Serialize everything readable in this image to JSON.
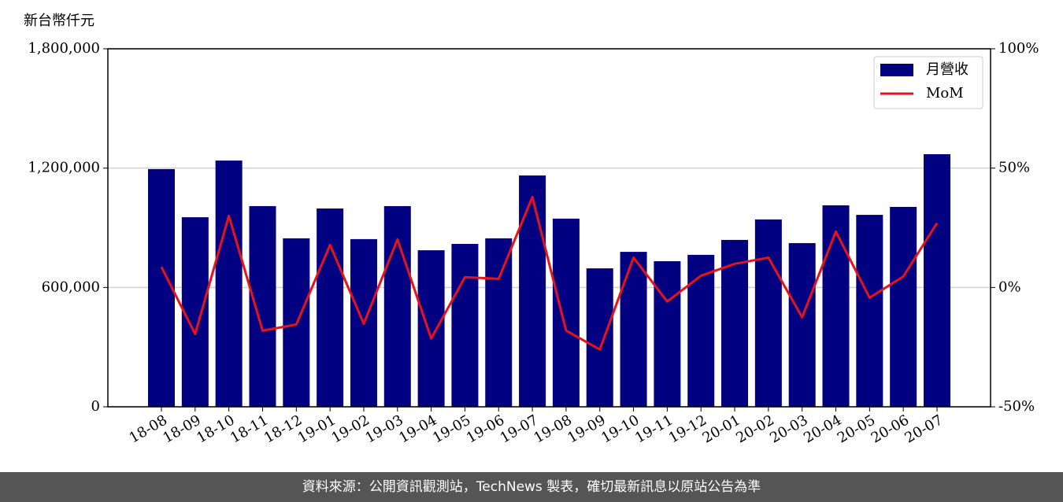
{
  "chart_data": {
    "type": "bar",
    "y_label": "新台幣仟元",
    "categories": [
      "18-08",
      "18-09",
      "18-10",
      "18-11",
      "18-12",
      "19-01",
      "19-02",
      "19-03",
      "19-04",
      "19-05",
      "19-06",
      "19-07",
      "19-08",
      "19-09",
      "19-10",
      "19-11",
      "19-12",
      "20-01",
      "20-02",
      "20-03",
      "20-04",
      "20-05",
      "20-06",
      "20-07"
    ],
    "series": [
      {
        "name": "月營收",
        "type": "bar",
        "color": "#000080",
        "values": [
          1195000,
          953000,
          1238000,
          1009000,
          847000,
          997000,
          843000,
          1009000,
          787000,
          819000,
          847000,
          1163000,
          946000,
          696000,
          779000,
          732000,
          764000,
          839000,
          942000,
          823000,
          1013000,
          965000,
          1005000,
          1270000
        ]
      },
      {
        "name": "MoM",
        "type": "line",
        "axis": "y2",
        "color": "#e8121b",
        "values": [
          8.6,
          -19.5,
          30.0,
          -18.1,
          -15.5,
          17.8,
          -15.2,
          20.1,
          -21.4,
          4.3,
          3.6,
          37.9,
          -18.1,
          -26.0,
          12.5,
          -5.9,
          4.9,
          9.9,
          12.5,
          -12.5,
          23.4,
          -4.3,
          4.6,
          27.0
        ]
      }
    ],
    "ylim": [
      0,
      1800000
    ],
    "yticks": [
      {
        "value": 0,
        "label": "0"
      },
      {
        "value": 600000,
        "label": "600,000"
      },
      {
        "value": 1200000,
        "label": "1,200,000"
      },
      {
        "value": 1800000,
        "label": "1,800,000"
      }
    ],
    "y2lim": [
      -50,
      100
    ],
    "y2ticks": [
      {
        "value": -50,
        "label": "-50%"
      },
      {
        "value": 0,
        "label": "0%"
      },
      {
        "value": 50,
        "label": "50%"
      },
      {
        "value": 100,
        "label": "100%"
      }
    ],
    "grid": true,
    "legend": "upper right"
  },
  "footer": "資料來源：公開資訊觀測站，TechNews 製表，確切最新訊息以原站公告為準"
}
